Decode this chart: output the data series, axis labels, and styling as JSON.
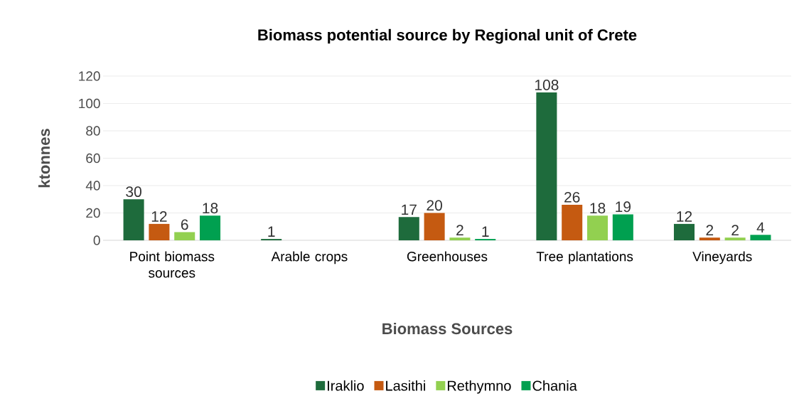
{
  "chart_data": {
    "type": "bar",
    "title": "Biomass potential source by Regional unit of Crete",
    "xlabel": "Biomass Sources",
    "ylabel": "ktonnes",
    "categories": [
      "Point biomass sources",
      "Arable crops",
      "Greenhouses",
      "Tree plantations",
      "Vineyards"
    ],
    "series": [
      {
        "name": "Iraklio",
        "color": "#1e6b3c",
        "values": [
          30,
          1,
          17,
          108,
          12
        ]
      },
      {
        "name": "Lasithi",
        "color": "#c55a11",
        "values": [
          12,
          null,
          20,
          26,
          2
        ]
      },
      {
        "name": "Rethymno",
        "color": "#92d050",
        "values": [
          6,
          null,
          2,
          18,
          2
        ]
      },
      {
        "name": "Chania",
        "color": "#00a050",
        "values": [
          18,
          null,
          1,
          19,
          4
        ]
      }
    ],
    "ylim": [
      0,
      120
    ],
    "yticks": [
      0,
      20,
      40,
      60,
      80,
      100,
      120
    ],
    "grid": "y",
    "legend": "bottom",
    "data_labels": true
  }
}
